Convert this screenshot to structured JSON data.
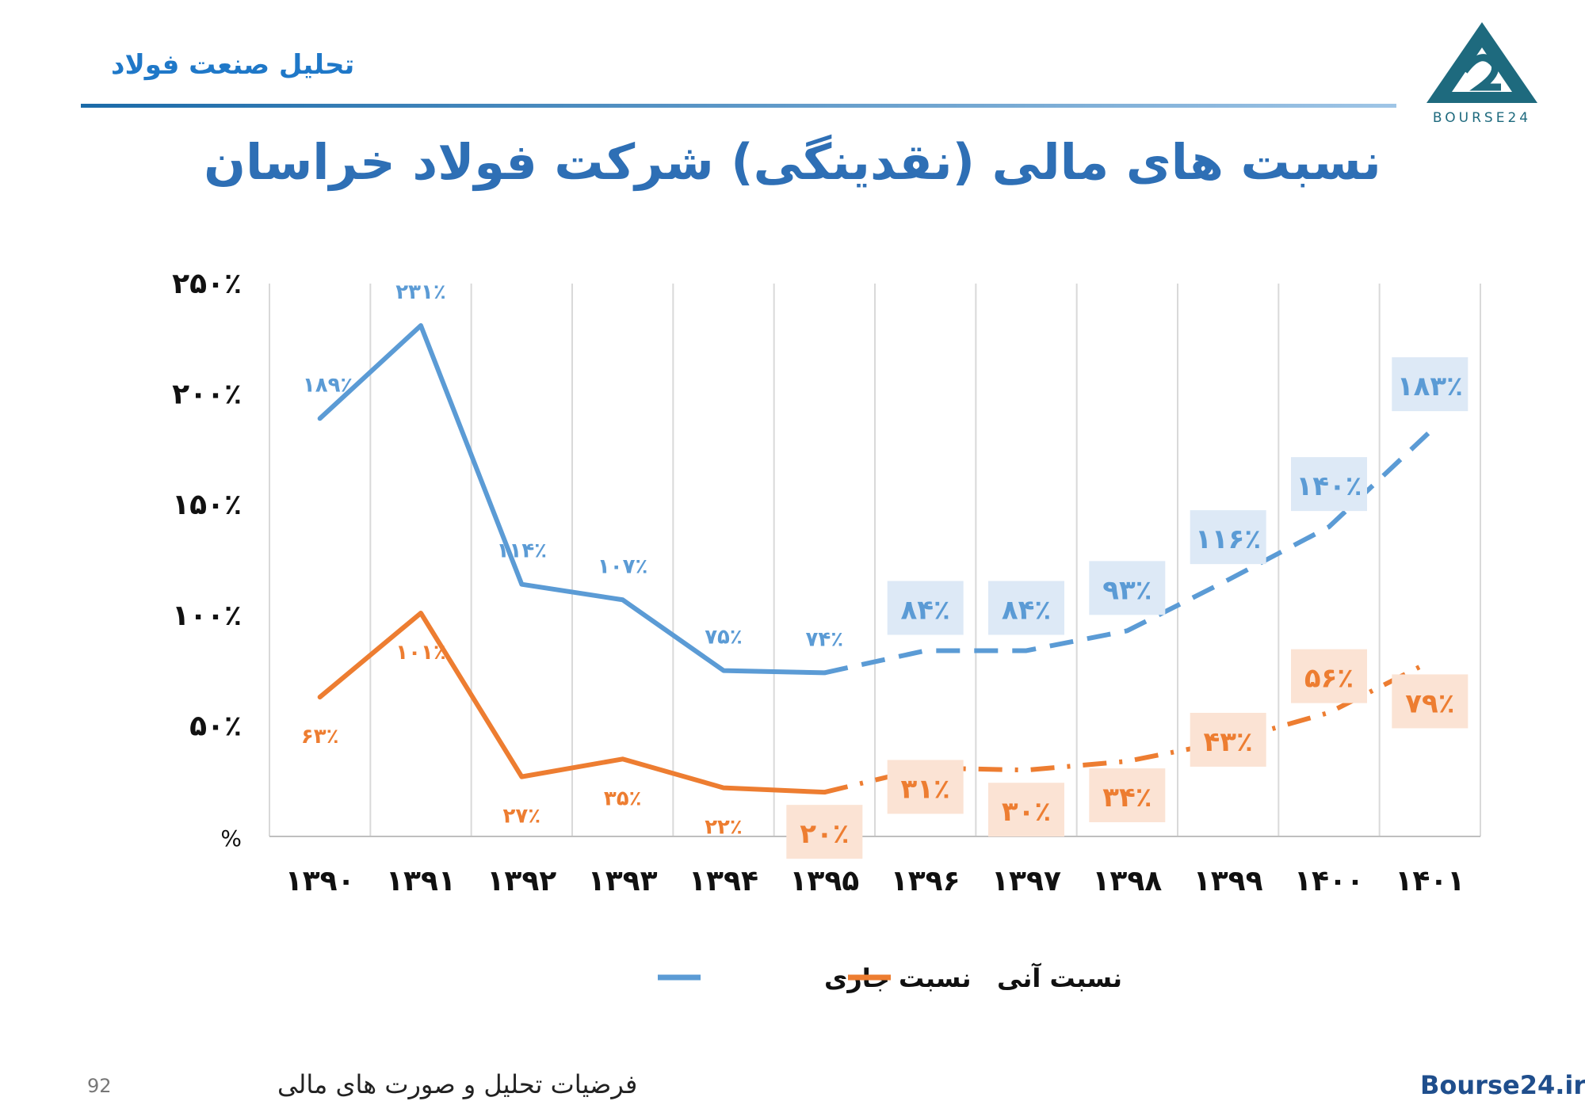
{
  "header": {
    "title": "تحلیل صنعت فولاد",
    "logo_text": "BOURSE24"
  },
  "slide": {
    "title": "نسبت های مالی (نقدینگی) شرکت فولاد خراسان"
  },
  "footer": {
    "page_number": "92",
    "subtitle": "فرضیات تحلیل و صورت های مالی",
    "site": "Bourse24.ir"
  },
  "colors": {
    "current": "#5b9bd5",
    "quick": "#ed7d31",
    "label_box_blue": "#dde9f6",
    "label_box_orange": "#fbe3d4"
  },
  "chart_data": {
    "type": "line",
    "categories": [
      "۱۳۹۰",
      "۱۳۹۱",
      "۱۳۹۲",
      "۱۳۹۳",
      "۱۳۹۴",
      "۱۳۹۵",
      "۱۳۹۶",
      "۱۳۹۷",
      "۱۳۹۸",
      "۱۳۹۹",
      "۱۴۰۰",
      "۱۴۰۱"
    ],
    "ylim": [
      0,
      250
    ],
    "yticks": [
      0,
      50,
      100,
      150,
      200,
      250
    ],
    "ytick_labels": [
      "%",
      "۵۰٪",
      "۱۰۰٪",
      "۱۵۰٪",
      "۲۰۰٪",
      "۲۵۰٪"
    ],
    "grid": true,
    "legend_position": "bottom",
    "actual_until_index": 5,
    "series": [
      {
        "name": "نسبت جاری",
        "color": "#5b9bd5",
        "style_forecast": "dashed",
        "values": [
          189,
          231,
          114,
          107,
          75,
          74,
          84,
          84,
          93,
          116,
          140,
          183
        ],
        "labels": [
          "۱۸۹٪",
          "۲۳۱٪",
          "۱۱۴٪",
          "۱۰۷٪",
          "۷۵٪",
          "۷۴٪",
          "۸۴٪",
          "۸۴٪",
          "۹۳٪",
          "۱۱۶٪",
          "۱۴۰٪",
          "۱۸۳٪"
        ]
      },
      {
        "name": "نسبت آنی",
        "color": "#ed7d31",
        "style_forecast": "dash-dot",
        "values": [
          63,
          101,
          27,
          35,
          22,
          20,
          31,
          30,
          34,
          43,
          56,
          79
        ],
        "labels": [
          "۶۳٪",
          "۱۰۱٪",
          "۲۷٪",
          "۳۵٪",
          "۲۲٪",
          "۲۰٪",
          "۳۱٪",
          "۳۰٪",
          "۳۴٪",
          "۴۳٪",
          "۵۶٪",
          "۷۹٪"
        ]
      }
    ]
  }
}
